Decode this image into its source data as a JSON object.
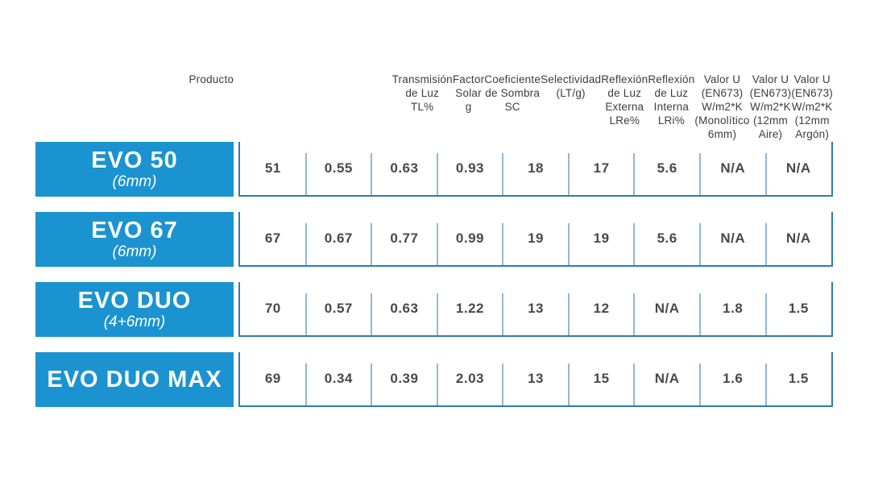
{
  "colors": {
    "product_bg": "#1b93d0",
    "row_border": "#2d7ea9",
    "cell_divider": "#8fb8d8",
    "header_text": "#3d3d3d",
    "value_text": "#47494c"
  },
  "chart_data": {
    "type": "table",
    "product_column_header": "Producto",
    "columns": [
      "Transmisión\nde Luz\nTL%",
      "Factor\nSolar\ng",
      "Coeficiente\nde Sombra\nSC",
      "Selectividad\n(LT/g)",
      "Reflexión\nde Luz\nExterna\nLRe%",
      "Reflexión\nde Luz\nInterna\nLRi%",
      "Valor U\n(EN673)\nW/m2*K\n(Monolítico\n6mm)",
      "Valor U\n(EN673)\nW/m2*K\n(12mm\nAire)",
      "Valor U\n(EN673)\nW/m2*K\n(12mm\nArgón)"
    ],
    "rows": [
      {
        "product": "EVO 50",
        "spec": "(6mm)",
        "values": [
          "51",
          "0.55",
          "0.63",
          "0.93",
          "18",
          "17",
          "5.6",
          "N/A",
          "N/A"
        ]
      },
      {
        "product": "EVO 67",
        "spec": "(6mm)",
        "values": [
          "67",
          "0.67",
          "0.77",
          "0.99",
          "19",
          "19",
          "5.6",
          "N/A",
          "N/A"
        ]
      },
      {
        "product": "EVO DUO",
        "spec": "(4+6mm)",
        "values": [
          "70",
          "0.57",
          "0.63",
          "1.22",
          "13",
          "12",
          "N/A",
          "1.8",
          "1.5"
        ]
      },
      {
        "product": "EVO DUO MAX",
        "spec": "",
        "values": [
          "69",
          "0.34",
          "0.39",
          "2.03",
          "13",
          "15",
          "N/A",
          "1.6",
          "1.5"
        ]
      }
    ]
  }
}
